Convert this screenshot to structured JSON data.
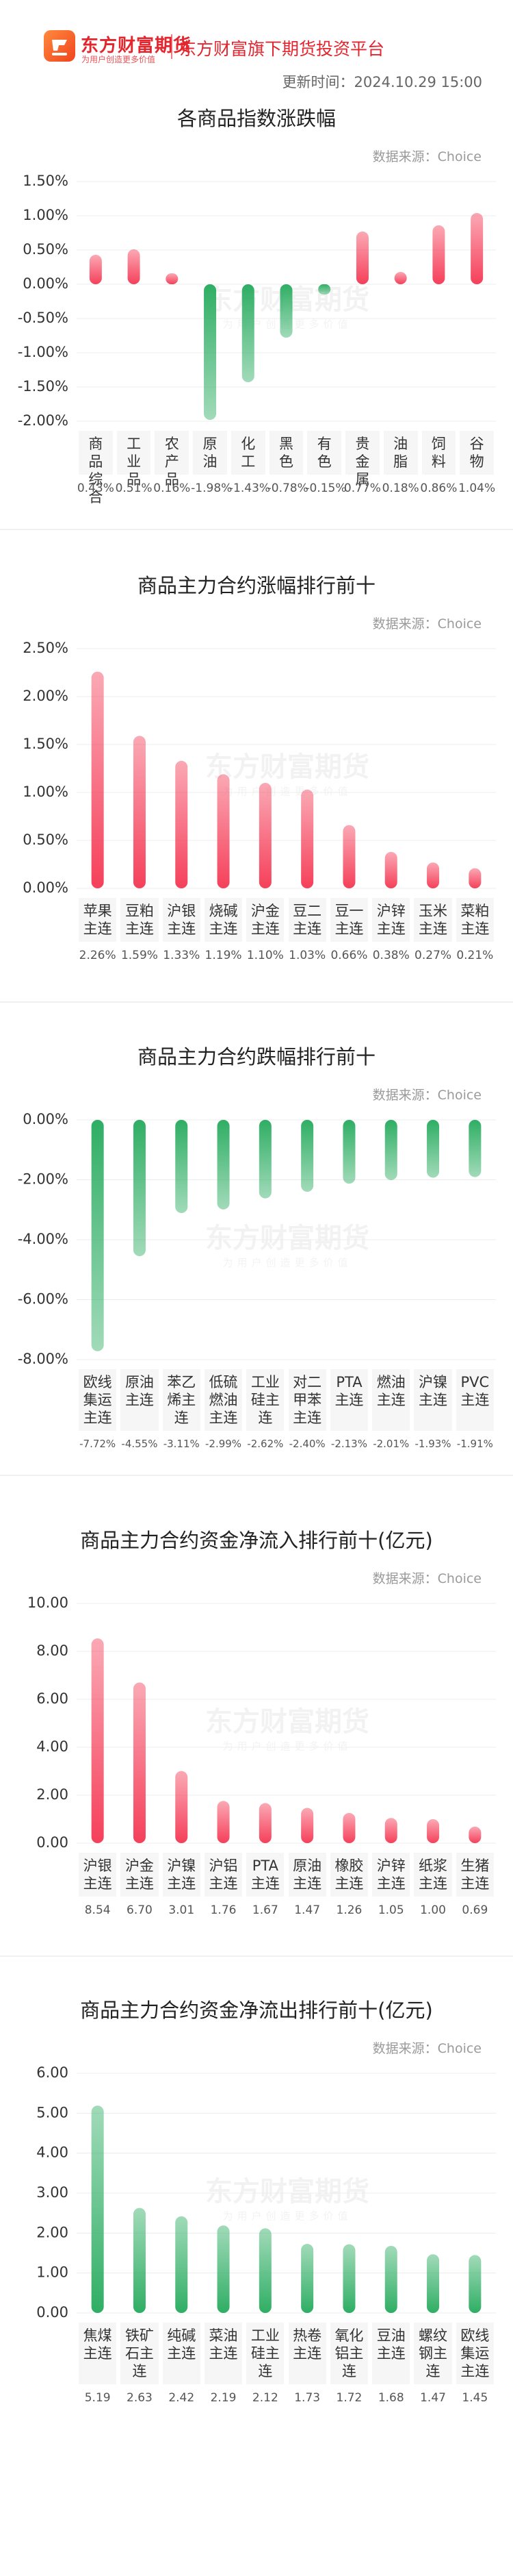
{
  "header": {
    "brand": "东方财富期货",
    "slogan": "为用户创造更多价值",
    "platform": "东方财富旗下期货投资平台",
    "update_time": "更新时间：2024.10.29 15:00"
  },
  "chart_data": [
    {
      "type": "bar",
      "title": "各商品指数涨跌幅",
      "source": "数据来源：Choice",
      "categories": [
        "商品综合",
        "工业品",
        "农产品",
        "原油",
        "化工",
        "黑色",
        "有色",
        "贵金属",
        "油脂",
        "饲料",
        "谷物"
      ],
      "values": [
        0.43,
        0.51,
        0.16,
        -1.98,
        -1.43,
        -0.78,
        -0.15,
        0.77,
        0.18,
        0.86,
        1.04
      ],
      "value_labels": [
        "0.43%",
        "0.51%",
        "0.16%",
        "-1.98%",
        "-1.43%",
        "-0.78%",
        "-0.15%",
        "0.77%",
        "0.18%",
        "0.86%",
        "1.04%"
      ],
      "color": "#f5405a",
      "negative_color": "#2fae64",
      "ylim": [
        -2,
        1.5
      ],
      "yticks": [
        {
          "value": 1.5,
          "label": "1.50%"
        },
        {
          "value": 1,
          "label": "1.00%"
        },
        {
          "value": 0.5,
          "label": "0.50%"
        },
        {
          "value": 0,
          "label": "0.00%"
        },
        {
          "value": -0.5,
          "label": "-0.50%"
        },
        {
          "value": -1,
          "label": "-1.00%"
        },
        {
          "value": -1.5,
          "label": "-1.50%"
        },
        {
          "value": -2,
          "label": "-2.00%"
        }
      ],
      "grid": true
    },
    {
      "type": "bar",
      "title": "商品主力合约涨幅排行前十",
      "source": "数据来源：Choice",
      "categories": [
        "苹果主连",
        "豆粕主连",
        "沪银主连",
        "烧碱主连",
        "沪金主连",
        "豆二主连",
        "豆一主连",
        "沪锌主连",
        "玉米主连",
        "菜粕主连"
      ],
      "values": [
        2.26,
        1.59,
        1.33,
        1.19,
        1.1,
        1.03,
        0.66,
        0.38,
        0.27,
        0.21
      ],
      "value_labels": [
        "2.26%",
        "1.59%",
        "1.33%",
        "1.19%",
        "1.10%",
        "1.03%",
        "0.66%",
        "0.38%",
        "0.27%",
        "0.21%"
      ],
      "color": "#f5405a",
      "ylim": [
        0,
        2.5
      ],
      "yticks": [
        {
          "value": 2.5,
          "label": "2.50%"
        },
        {
          "value": 2,
          "label": "2.00%"
        },
        {
          "value": 1.5,
          "label": "1.50%"
        },
        {
          "value": 1,
          "label": "1.00%"
        },
        {
          "value": 0.5,
          "label": "0.50%"
        },
        {
          "value": 0,
          "label": "0.00%"
        }
      ],
      "grid": true
    },
    {
      "type": "bar",
      "title": "商品主力合约跌幅排行前十",
      "source": "数据来源：Choice",
      "categories": [
        "欧线集运主连",
        "原油主连",
        "苯乙烯主连",
        "低硫燃油主连",
        "工业硅主连",
        "对二甲苯主连",
        "PTA主连",
        "燃油主连",
        "沪镍主连",
        "PVC主连"
      ],
      "values": [
        -7.72,
        -4.55,
        -3.11,
        -2.99,
        -2.62,
        -2.4,
        -2.13,
        -2.01,
        -1.93,
        -1.91
      ],
      "value_labels": [
        "-7.72%",
        "-4.55%",
        "-3.11%",
        "-2.99%",
        "-2.62%",
        "-2.40%",
        "-2.13%",
        "-2.01%",
        "-1.93%",
        "-1.91%"
      ],
      "color": "#2fae64",
      "ylim": [
        -8,
        0
      ],
      "yticks": [
        {
          "value": 0,
          "label": "0.00%"
        },
        {
          "value": -2,
          "label": "-2.00%"
        },
        {
          "value": -4,
          "label": "-4.00%"
        },
        {
          "value": -6,
          "label": "-6.00%"
        },
        {
          "value": -8,
          "label": "-8.00%"
        }
      ],
      "grid": true
    },
    {
      "type": "bar",
      "title": "商品主力合约资金净流入排行前十(亿元)",
      "source": "数据来源：Choice",
      "categories": [
        "沪银主连",
        "沪金主连",
        "沪镍主连",
        "沪铝主连",
        "PTA主连",
        "原油主连",
        "橡胶主连",
        "沪锌主连",
        "纸浆主连",
        "生猪主连"
      ],
      "values": [
        8.54,
        6.7,
        3.01,
        1.76,
        1.67,
        1.47,
        1.26,
        1.05,
        1.0,
        0.69
      ],
      "value_labels": [
        "8.54",
        "6.70",
        "3.01",
        "1.76",
        "1.67",
        "1.47",
        "1.26",
        "1.05",
        "1.00",
        "0.69"
      ],
      "color": "#f5405a",
      "ylim": [
        0,
        10
      ],
      "yticks": [
        {
          "value": 10,
          "label": "10.00"
        },
        {
          "value": 8,
          "label": "8.00"
        },
        {
          "value": 6,
          "label": "6.00"
        },
        {
          "value": 4,
          "label": "4.00"
        },
        {
          "value": 2,
          "label": "2.00"
        },
        {
          "value": 0,
          "label": "0.00"
        }
      ],
      "grid": true
    },
    {
      "type": "bar",
      "title": "商品主力合约资金净流出排行前十(亿元)",
      "source": "数据来源：Choice",
      "categories": [
        "焦煤主连",
        "铁矿石主连",
        "纯碱主连",
        "菜油主连",
        "工业硅主连",
        "热卷主连",
        "氧化铝主连",
        "豆油主连",
        "螺纹钢主连",
        "欧线集运主连"
      ],
      "values": [
        5.19,
        2.63,
        2.42,
        2.19,
        2.12,
        1.73,
        1.72,
        1.68,
        1.47,
        1.45
      ],
      "value_labels": [
        "5.19",
        "2.63",
        "2.42",
        "2.19",
        "2.12",
        "1.73",
        "1.72",
        "1.68",
        "1.47",
        "1.45"
      ],
      "color": "#2fae64",
      "ylim": [
        0,
        6
      ],
      "yticks": [
        {
          "value": 6,
          "label": "6.00"
        },
        {
          "value": 5,
          "label": "5.00"
        },
        {
          "value": 4,
          "label": "4.00"
        },
        {
          "value": 3,
          "label": "3.00"
        },
        {
          "value": 2,
          "label": "2.00"
        },
        {
          "value": 1,
          "label": "1.00"
        },
        {
          "value": 0,
          "label": "0.00"
        }
      ],
      "grid": true
    }
  ]
}
